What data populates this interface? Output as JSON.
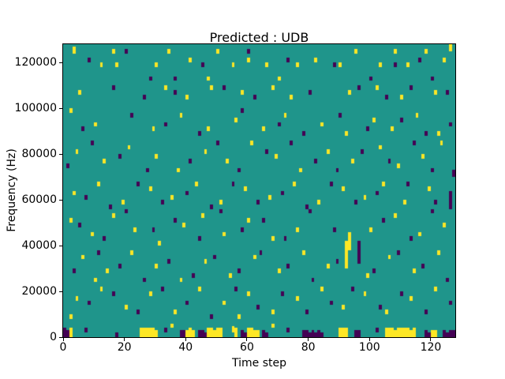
{
  "chart_data": {
    "type": "heatmap",
    "title": "Predicted : UDB",
    "xlabel": "Time step",
    "ylabel": "Frequency (Hz)",
    "x_range": [
      0,
      128
    ],
    "y_range": [
      0,
      128000
    ],
    "x_ticks": [
      0,
      20,
      40,
      60,
      80,
      100,
      120
    ],
    "y_ticks": [
      0,
      20000,
      40000,
      60000,
      80000,
      100000,
      120000
    ],
    "grid": {
      "cols": 128,
      "rows": 128,
      "hz_per_row": 1000
    },
    "colormap": "viridis",
    "legend": "none",
    "colors": {
      "background": "#1f958b",
      "high": "#fde725",
      "low": "#440154"
    },
    "cell_format": "[time_step_col, freq_row, row_span]",
    "cells": {
      "high": [
        [
          3,
          124,
          3
        ],
        [
          12,
          118,
          2
        ],
        [
          16,
          124,
          2
        ],
        [
          17,
          118,
          2
        ],
        [
          30,
          118,
          2
        ],
        [
          34,
          124,
          2
        ],
        [
          41,
          120,
          2
        ],
        [
          47,
          112,
          2
        ],
        [
          50,
          124,
          2
        ],
        [
          55,
          118,
          2
        ],
        [
          60,
          120,
          2
        ],
        [
          66,
          118,
          2
        ],
        [
          70,
          112,
          2
        ],
        [
          76,
          118,
          2
        ],
        [
          82,
          120,
          2
        ],
        [
          90,
          118,
          2
        ],
        [
          95,
          124,
          2
        ],
        [
          103,
          118,
          2
        ],
        [
          108,
          124,
          2
        ],
        [
          112,
          118,
          2
        ],
        [
          118,
          124,
          2
        ],
        [
          124,
          120,
          2
        ],
        [
          126,
          125,
          3
        ],
        [
          5,
          106,
          2
        ],
        [
          33,
          108,
          2
        ],
        [
          40,
          104,
          2
        ],
        [
          48,
          108,
          2
        ],
        [
          58,
          106,
          2
        ],
        [
          68,
          108,
          2
        ],
        [
          74,
          104,
          2
        ],
        [
          93,
          106,
          2
        ],
        [
          102,
          108,
          2
        ],
        [
          110,
          104,
          2
        ],
        [
          121,
          106,
          2
        ],
        [
          2,
          98,
          2
        ],
        [
          10,
          92,
          2
        ],
        [
          29,
          90,
          2
        ],
        [
          38,
          96,
          2
        ],
        [
          47,
          90,
          2
        ],
        [
          56,
          94,
          2
        ],
        [
          65,
          90,
          2
        ],
        [
          72,
          96,
          2
        ],
        [
          84,
          92,
          2
        ],
        [
          92,
          88,
          2
        ],
        [
          101,
          94,
          2
        ],
        [
          107,
          90,
          2
        ],
        [
          115,
          96,
          2
        ],
        [
          122,
          88,
          2
        ],
        [
          4,
          80,
          2
        ],
        [
          13,
          76,
          2
        ],
        [
          21,
          82,
          2
        ],
        [
          30,
          78,
          2
        ],
        [
          37,
          72,
          2
        ],
        [
          46,
          80,
          2
        ],
        [
          53,
          76,
          2
        ],
        [
          61,
          84,
          2
        ],
        [
          69,
          78,
          2
        ],
        [
          77,
          72,
          2
        ],
        [
          86,
          80,
          2
        ],
        [
          94,
          76,
          2
        ],
        [
          103,
          82,
          2
        ],
        [
          109,
          74,
          2
        ],
        [
          117,
          78,
          2
        ],
        [
          123,
          84,
          2
        ],
        [
          3,
          62,
          2
        ],
        [
          11,
          66,
          2
        ],
        [
          19,
          58,
          2
        ],
        [
          28,
          64,
          2
        ],
        [
          35,
          60,
          2
        ],
        [
          43,
          66,
          2
        ],
        [
          51,
          58,
          2
        ],
        [
          59,
          64,
          2
        ],
        [
          67,
          60,
          2
        ],
        [
          75,
          66,
          2
        ],
        [
          83,
          58,
          2
        ],
        [
          91,
          64,
          2
        ],
        [
          98,
          60,
          2
        ],
        [
          104,
          66,
          2
        ],
        [
          111,
          58,
          2
        ],
        [
          119,
          64,
          2
        ],
        [
          2,
          50,
          2
        ],
        [
          9,
          44,
          2
        ],
        [
          16,
          52,
          2
        ],
        [
          23,
          46,
          2
        ],
        [
          31,
          40,
          2
        ],
        [
          39,
          48,
          2
        ],
        [
          45,
          52,
          2
        ],
        [
          52,
          44,
          2
        ],
        [
          60,
          50,
          2
        ],
        [
          68,
          42,
          2
        ],
        [
          76,
          46,
          2
        ],
        [
          92,
          30,
          12
        ],
        [
          93,
          38,
          8
        ],
        [
          100,
          46,
          2
        ],
        [
          108,
          52,
          2
        ],
        [
          116,
          44,
          2
        ],
        [
          124,
          48,
          2
        ],
        [
          6,
          34,
          2
        ],
        [
          10,
          24,
          2
        ],
        [
          14,
          28,
          2
        ],
        [
          22,
          36,
          2
        ],
        [
          30,
          30,
          2
        ],
        [
          38,
          24,
          2
        ],
        [
          46,
          32,
          2
        ],
        [
          54,
          26,
          2
        ],
        [
          62,
          34,
          2
        ],
        [
          70,
          28,
          2
        ],
        [
          78,
          36,
          2
        ],
        [
          86,
          30,
          2
        ],
        [
          99,
          26,
          2
        ],
        [
          106,
          34,
          2
        ],
        [
          114,
          28,
          2
        ],
        [
          122,
          36,
          2
        ],
        [
          2,
          8,
          2
        ],
        [
          4,
          16,
          2
        ],
        [
          12,
          20,
          2
        ],
        [
          20,
          12,
          2
        ],
        [
          28,
          18,
          2
        ],
        [
          36,
          10,
          2
        ],
        [
          44,
          20,
          2
        ],
        [
          52,
          14,
          2
        ],
        [
          57,
          8,
          2
        ],
        [
          60,
          18,
          2
        ],
        [
          68,
          10,
          2
        ],
        [
          76,
          16,
          2
        ],
        [
          84,
          20,
          2
        ],
        [
          91,
          12,
          2
        ],
        [
          98,
          18,
          2
        ],
        [
          105,
          10,
          2
        ],
        [
          113,
          16,
          2
        ],
        [
          121,
          20,
          2
        ],
        [
          2,
          0,
          4
        ],
        [
          25,
          0,
          4
        ],
        [
          26,
          0,
          4
        ],
        [
          27,
          0,
          4
        ],
        [
          28,
          0,
          4
        ],
        [
          29,
          0,
          4
        ],
        [
          30,
          0,
          3
        ],
        [
          35,
          4,
          2
        ],
        [
          40,
          0,
          3
        ],
        [
          41,
          0,
          4
        ],
        [
          42,
          0,
          3
        ],
        [
          47,
          0,
          4
        ],
        [
          48,
          0,
          4
        ],
        [
          49,
          0,
          3
        ],
        [
          50,
          0,
          4
        ],
        [
          51,
          0,
          4
        ],
        [
          55,
          2,
          3
        ],
        [
          56,
          0,
          4
        ],
        [
          60,
          0,
          4
        ],
        [
          61,
          0,
          4
        ],
        [
          62,
          0,
          3
        ],
        [
          63,
          0,
          3
        ],
        [
          68,
          4,
          2
        ],
        [
          90,
          0,
          4
        ],
        [
          91,
          0,
          4
        ],
        [
          92,
          0,
          4
        ],
        [
          105,
          0,
          4
        ],
        [
          106,
          0,
          4
        ],
        [
          107,
          0,
          4
        ],
        [
          108,
          0,
          3
        ],
        [
          109,
          0,
          4
        ],
        [
          110,
          0,
          4
        ],
        [
          111,
          0,
          4
        ],
        [
          112,
          0,
          4
        ],
        [
          113,
          0,
          3
        ],
        [
          114,
          0,
          4
        ],
        [
          120,
          0,
          3
        ],
        [
          121,
          0,
          3
        ]
      ],
      "low": [
        [
          8,
          120,
          2
        ],
        [
          20,
          124,
          2
        ],
        [
          28,
          112,
          2
        ],
        [
          36,
          112,
          2
        ],
        [
          45,
          118,
          2
        ],
        [
          60,
          124,
          2
        ],
        [
          73,
          120,
          2
        ],
        [
          88,
          118,
          2
        ],
        [
          100,
          112,
          2
        ],
        [
          108,
          118,
          2
        ],
        [
          116,
          120,
          2
        ],
        [
          120,
          112,
          2
        ],
        [
          16,
          108,
          2
        ],
        [
          26,
          104,
          2
        ],
        [
          36,
          106,
          2
        ],
        [
          52,
          108,
          2
        ],
        [
          62,
          104,
          2
        ],
        [
          80,
          106,
          2
        ],
        [
          96,
          108,
          2
        ],
        [
          105,
          104,
          2
        ],
        [
          113,
          108,
          2
        ],
        [
          125,
          106,
          2
        ],
        [
          6,
          90,
          2
        ],
        [
          22,
          96,
          2
        ],
        [
          33,
          92,
          2
        ],
        [
          44,
          88,
          2
        ],
        [
          58,
          98,
          2
        ],
        [
          70,
          92,
          2
        ],
        [
          78,
          88,
          2
        ],
        [
          90,
          96,
          2
        ],
        [
          99,
          90,
          2
        ],
        [
          110,
          94,
          2
        ],
        [
          118,
          88,
          2
        ],
        [
          126,
          92,
          2
        ],
        [
          1,
          74,
          2
        ],
        [
          9,
          84,
          2
        ],
        [
          18,
          78,
          2
        ],
        [
          27,
          72,
          2
        ],
        [
          41,
          76,
          2
        ],
        [
          50,
          84,
          2
        ],
        [
          57,
          72,
          2
        ],
        [
          66,
          80,
          2
        ],
        [
          74,
          84,
          2
        ],
        [
          82,
          76,
          2
        ],
        [
          89,
          72,
          2
        ],
        [
          97,
          80,
          2
        ],
        [
          106,
          76,
          2
        ],
        [
          114,
          84,
          2
        ],
        [
          120,
          72,
          2
        ],
        [
          127,
          70,
          3
        ],
        [
          7,
          60,
          2
        ],
        [
          15,
          56,
          2
        ],
        [
          24,
          66,
          2
        ],
        [
          32,
          58,
          2
        ],
        [
          40,
          62,
          2
        ],
        [
          48,
          56,
          2
        ],
        [
          55,
          66,
          2
        ],
        [
          63,
          58,
          2
        ],
        [
          71,
          62,
          2
        ],
        [
          79,
          56,
          2
        ],
        [
          87,
          66,
          2
        ],
        [
          95,
          58,
          2
        ],
        [
          102,
          62,
          2
        ],
        [
          112,
          66,
          2
        ],
        [
          121,
          58,
          2
        ],
        [
          126,
          56,
          8
        ],
        [
          5,
          48,
          2
        ],
        [
          13,
          42,
          2
        ],
        [
          20,
          54,
          2
        ],
        [
          29,
          46,
          2
        ],
        [
          36,
          50,
          2
        ],
        [
          44,
          42,
          2
        ],
        [
          51,
          54,
          2
        ],
        [
          58,
          46,
          2
        ],
        [
          65,
          50,
          2
        ],
        [
          72,
          42,
          2
        ],
        [
          80,
          54,
          2
        ],
        [
          88,
          46,
          2
        ],
        [
          96,
          32,
          10
        ],
        [
          104,
          50,
          2
        ],
        [
          113,
          42,
          2
        ],
        [
          120,
          54,
          2
        ],
        [
          3,
          28,
          2
        ],
        [
          11,
          36,
          2
        ],
        [
          18,
          30,
          2
        ],
        [
          26,
          24,
          2
        ],
        [
          34,
          32,
          2
        ],
        [
          42,
          26,
          2
        ],
        [
          49,
          34,
          2
        ],
        [
          57,
          28,
          2
        ],
        [
          64,
          36,
          2
        ],
        [
          73,
          30,
          2
        ],
        [
          81,
          24,
          2
        ],
        [
          89,
          32,
          2
        ],
        [
          101,
          28,
          2
        ],
        [
          109,
          36,
          2
        ],
        [
          117,
          30,
          2
        ],
        [
          125,
          24,
          2
        ],
        [
          8,
          14,
          2
        ],
        [
          16,
          18,
          2
        ],
        [
          24,
          10,
          2
        ],
        [
          32,
          20,
          2
        ],
        [
          40,
          14,
          2
        ],
        [
          48,
          8,
          2
        ],
        [
          56,
          20,
          2
        ],
        [
          63,
          12,
          2
        ],
        [
          71,
          18,
          2
        ],
        [
          79,
          10,
          2
        ],
        [
          87,
          14,
          2
        ],
        [
          94,
          20,
          2
        ],
        [
          103,
          12,
          2
        ],
        [
          110,
          18,
          2
        ],
        [
          118,
          10,
          2
        ],
        [
          126,
          14,
          2
        ],
        [
          0,
          0,
          4
        ],
        [
          1,
          0,
          3
        ],
        [
          7,
          2,
          2
        ],
        [
          17,
          0,
          2
        ],
        [
          33,
          2,
          2
        ],
        [
          38,
          0,
          3
        ],
        [
          39,
          0,
          3
        ],
        [
          44,
          0,
          3
        ],
        [
          45,
          0,
          3
        ],
        [
          46,
          0,
          2
        ],
        [
          58,
          0,
          3
        ],
        [
          59,
          0,
          2
        ],
        [
          65,
          0,
          3
        ],
        [
          66,
          0,
          2
        ],
        [
          73,
          2,
          2
        ],
        [
          78,
          0,
          3
        ],
        [
          79,
          0,
          3
        ],
        [
          80,
          0,
          2
        ],
        [
          81,
          0,
          3
        ],
        [
          82,
          0,
          2
        ],
        [
          83,
          0,
          3
        ],
        [
          84,
          0,
          2
        ],
        [
          95,
          0,
          3
        ],
        [
          96,
          0,
          3
        ],
        [
          102,
          2,
          2
        ],
        [
          118,
          0,
          3
        ],
        [
          119,
          0,
          2
        ],
        [
          124,
          0,
          3
        ],
        [
          125,
          0,
          2
        ],
        [
          126,
          0,
          3
        ],
        [
          127,
          0,
          3
        ]
      ]
    }
  }
}
